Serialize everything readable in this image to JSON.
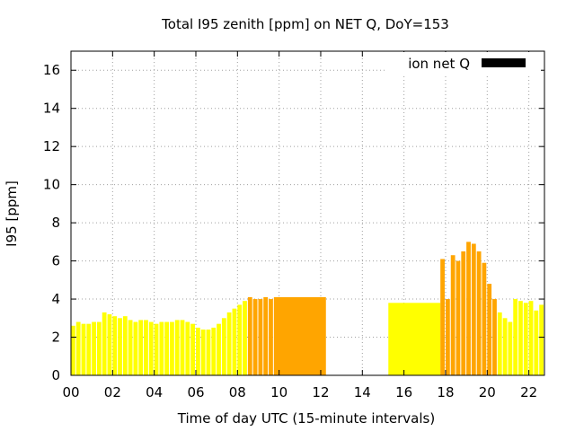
{
  "chart_data": {
    "type": "bar",
    "title": "Total I95 zenith [ppm] on NET Q, DoY=153",
    "xlabel": "Time of day UTC (15-minute intervals)",
    "ylabel": "I95 [ppm]",
    "xlim": [
      0,
      22.75
    ],
    "ylim": [
      0,
      17
    ],
    "xticks": [
      "00",
      "02",
      "04",
      "06",
      "08",
      "10",
      "12",
      "14",
      "16",
      "18",
      "20",
      "22"
    ],
    "yticks": [
      "0",
      "2",
      "4",
      "6",
      "8",
      "10",
      "12",
      "14",
      "16"
    ],
    "grid": true,
    "legend": {
      "label": "ion net Q",
      "position": "top-right",
      "swatch_color": "#000000"
    },
    "colors": {
      "yellow": "#ffff00",
      "light_yellow": "#ffff66",
      "orange": "#ffa500"
    },
    "bars": [
      {
        "x": 0.0,
        "w": 0.25,
        "y": 2.6,
        "color": "#ffff00"
      },
      {
        "x": 0.25,
        "w": 0.25,
        "y": 2.8,
        "color": "#ffff00"
      },
      {
        "x": 0.5,
        "w": 0.25,
        "y": 2.7,
        "color": "#ffff00"
      },
      {
        "x": 0.75,
        "w": 0.25,
        "y": 2.7,
        "color": "#ffff00"
      },
      {
        "x": 1.0,
        "w": 0.25,
        "y": 2.8,
        "color": "#ffff00"
      },
      {
        "x": 1.25,
        "w": 0.25,
        "y": 2.8,
        "color": "#ffff00"
      },
      {
        "x": 1.5,
        "w": 0.25,
        "y": 3.3,
        "color": "#ffff00"
      },
      {
        "x": 1.75,
        "w": 0.25,
        "y": 3.2,
        "color": "#ffff00"
      },
      {
        "x": 2.0,
        "w": 0.25,
        "y": 3.1,
        "color": "#ffff00"
      },
      {
        "x": 2.25,
        "w": 0.25,
        "y": 3.0,
        "color": "#ffff00"
      },
      {
        "x": 2.5,
        "w": 0.25,
        "y": 3.1,
        "color": "#ffff00"
      },
      {
        "x": 2.75,
        "w": 0.25,
        "y": 2.9,
        "color": "#ffff00"
      },
      {
        "x": 3.0,
        "w": 0.25,
        "y": 2.8,
        "color": "#ffff00"
      },
      {
        "x": 3.25,
        "w": 0.25,
        "y": 2.9,
        "color": "#ffff00"
      },
      {
        "x": 3.5,
        "w": 0.25,
        "y": 2.9,
        "color": "#ffff00"
      },
      {
        "x": 3.75,
        "w": 0.25,
        "y": 2.8,
        "color": "#ffff00"
      },
      {
        "x": 4.0,
        "w": 0.25,
        "y": 2.7,
        "color": "#ffff00"
      },
      {
        "x": 4.25,
        "w": 0.25,
        "y": 2.8,
        "color": "#ffff00"
      },
      {
        "x": 4.5,
        "w": 0.25,
        "y": 2.8,
        "color": "#ffff00"
      },
      {
        "x": 4.75,
        "w": 0.25,
        "y": 2.8,
        "color": "#ffff00"
      },
      {
        "x": 5.0,
        "w": 0.25,
        "y": 2.9,
        "color": "#ffff00"
      },
      {
        "x": 5.25,
        "w": 0.25,
        "y": 2.9,
        "color": "#ffff00"
      },
      {
        "x": 5.5,
        "w": 0.25,
        "y": 2.8,
        "color": "#ffff00"
      },
      {
        "x": 5.75,
        "w": 0.25,
        "y": 2.7,
        "color": "#ffff00"
      },
      {
        "x": 6.0,
        "w": 0.25,
        "y": 2.5,
        "color": "#ffff00"
      },
      {
        "x": 6.25,
        "w": 0.25,
        "y": 2.4,
        "color": "#ffff00"
      },
      {
        "x": 6.5,
        "w": 0.25,
        "y": 2.4,
        "color": "#ffff00"
      },
      {
        "x": 6.75,
        "w": 0.25,
        "y": 2.5,
        "color": "#ffff00"
      },
      {
        "x": 7.0,
        "w": 0.25,
        "y": 2.7,
        "color": "#ffff00"
      },
      {
        "x": 7.25,
        "w": 0.25,
        "y": 3.0,
        "color": "#ffff00"
      },
      {
        "x": 7.5,
        "w": 0.25,
        "y": 3.3,
        "color": "#ffff00"
      },
      {
        "x": 7.75,
        "w": 0.25,
        "y": 3.5,
        "color": "#ffff00"
      },
      {
        "x": 8.0,
        "w": 0.25,
        "y": 3.7,
        "color": "#ffff00"
      },
      {
        "x": 8.25,
        "w": 0.25,
        "y": 3.9,
        "color": "#ffff00"
      },
      {
        "x": 8.5,
        "w": 0.25,
        "y": 4.1,
        "color": "#ffa500"
      },
      {
        "x": 8.75,
        "w": 0.25,
        "y": 4.0,
        "color": "#ffa500"
      },
      {
        "x": 9.0,
        "w": 0.25,
        "y": 4.0,
        "color": "#ffa500"
      },
      {
        "x": 9.25,
        "w": 0.25,
        "y": 4.1,
        "color": "#ffa500"
      },
      {
        "x": 9.5,
        "w": 0.25,
        "y": 4.0,
        "color": "#ffa500"
      },
      {
        "x": 9.75,
        "w": 2.5,
        "y": 4.1,
        "color": "#ffa500"
      },
      {
        "x": 15.25,
        "w": 2.5,
        "y": 3.8,
        "color": "#ffff00"
      },
      {
        "x": 17.75,
        "w": 0.25,
        "y": 6.1,
        "color": "#ffa500"
      },
      {
        "x": 18.0,
        "w": 0.25,
        "y": 4.0,
        "color": "#ffa500"
      },
      {
        "x": 18.25,
        "w": 0.25,
        "y": 6.3,
        "color": "#ffa500"
      },
      {
        "x": 18.5,
        "w": 0.25,
        "y": 6.0,
        "color": "#ffa500"
      },
      {
        "x": 18.75,
        "w": 0.25,
        "y": 6.5,
        "color": "#ffa500"
      },
      {
        "x": 19.0,
        "w": 0.25,
        "y": 7.0,
        "color": "#ffa500"
      },
      {
        "x": 19.25,
        "w": 0.25,
        "y": 6.9,
        "color": "#ffa500"
      },
      {
        "x": 19.5,
        "w": 0.25,
        "y": 6.5,
        "color": "#ffa500"
      },
      {
        "x": 19.75,
        "w": 0.25,
        "y": 5.9,
        "color": "#ffa500"
      },
      {
        "x": 20.0,
        "w": 0.25,
        "y": 4.8,
        "color": "#ffa500"
      },
      {
        "x": 20.25,
        "w": 0.25,
        "y": 4.0,
        "color": "#ffa500"
      },
      {
        "x": 20.5,
        "w": 0.25,
        "y": 3.3,
        "color": "#ffff00"
      },
      {
        "x": 20.75,
        "w": 0.25,
        "y": 3.0,
        "color": "#ffff00"
      },
      {
        "x": 21.0,
        "w": 0.25,
        "y": 2.8,
        "color": "#ffff00"
      },
      {
        "x": 21.25,
        "w": 0.25,
        "y": 4.0,
        "color": "#ffff00"
      },
      {
        "x": 21.5,
        "w": 0.25,
        "y": 3.9,
        "color": "#ffff00"
      },
      {
        "x": 21.75,
        "w": 0.25,
        "y": 3.8,
        "color": "#ffff00"
      },
      {
        "x": 22.0,
        "w": 0.25,
        "y": 3.9,
        "color": "#ffff00"
      },
      {
        "x": 22.25,
        "w": 0.25,
        "y": 3.4,
        "color": "#ffff00"
      },
      {
        "x": 22.5,
        "w": 0.25,
        "y": 3.7,
        "color": "#ffff00"
      }
    ]
  }
}
